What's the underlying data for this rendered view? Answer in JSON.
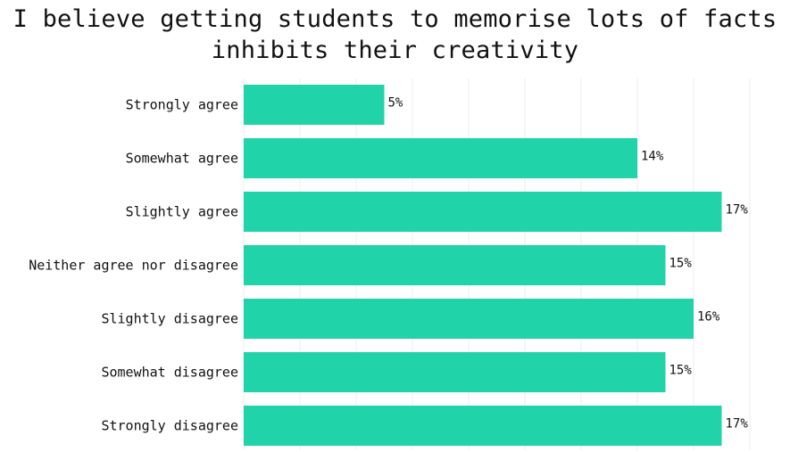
{
  "chart_data": {
    "type": "bar",
    "orientation": "horizontal",
    "title_lines": [
      "I believe getting students to memorise lots of facts",
      "inhibits their creativity"
    ],
    "categories": [
      "Strongly agree",
      "Somewhat agree",
      "Slightly agree",
      "Neither agree nor disagree",
      "Slightly disagree",
      "Somewhat disagree",
      "Strongly disagree"
    ],
    "values": [
      5,
      14,
      17,
      15,
      16,
      15,
      17
    ],
    "value_labels": [
      "5%",
      "14%",
      "17%",
      "15%",
      "16%",
      "15%",
      "17%"
    ],
    "unit": "%",
    "xlim": [
      0,
      18
    ],
    "grid": true,
    "legend": "none",
    "bar_color": "#20d3a8",
    "grid_color": "#eeeeee"
  }
}
